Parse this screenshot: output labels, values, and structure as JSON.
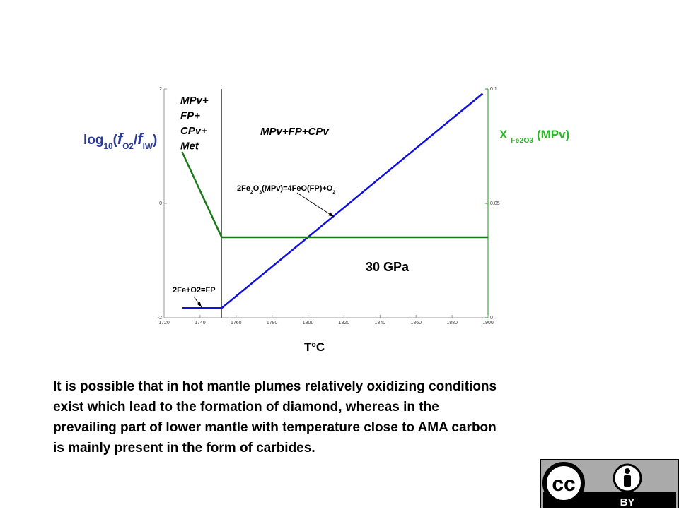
{
  "chart_data": {
    "type": "line",
    "x_label_parts": [
      "T",
      "o",
      "C"
    ],
    "y_label_parts": [
      "log",
      "10",
      "(",
      "f",
      "O2",
      "/",
      "f",
      "IW",
      ")"
    ],
    "y2_label_parts": [
      "X ",
      "Fe2O3",
      " (MPv)"
    ],
    "xlim": [
      1720,
      1900
    ],
    "xticks": [
      1720,
      1740,
      1760,
      1780,
      1800,
      1820,
      1840,
      1860,
      1880,
      1900
    ],
    "ylim": [
      -2,
      2
    ],
    "yticks": [
      -2,
      0,
      2
    ],
    "y2lim": [
      0,
      0.1
    ],
    "y2ticks": [
      0,
      0.05,
      0.1
    ],
    "boundary_x": 1752,
    "series": [
      {
        "color": "#1010e0",
        "x": [
          1730,
          1752,
          1897
        ],
        "values": [
          -1.83,
          -1.83,
          1.92
        ]
      },
      {
        "color": "#1a7a1a",
        "axis": "y2",
        "x": [
          1730,
          1752,
          1900
        ],
        "values": [
          0.0725,
          0.0352,
          0.0352
        ]
      }
    ],
    "phase_left": [
      "MPv+",
      "FP+",
      "CPv+",
      "Met"
    ],
    "phase_right": "MPv+FP+CPv",
    "pressure": "30 GPa",
    "reaction_low": "2Fe+O2=FP",
    "reaction_high_parts": [
      "2Fe",
      "2",
      "O",
      "3",
      "(MPv)=4FeO(FP)+O",
      "2"
    ]
  },
  "caption": [
    "It is possible that in hot mantle plumes relatively oxidizing conditions",
    "exist which lead to the formation of diamond, whereas in the",
    "prevailing part of lower mantle with temperature close to AMA carbon",
    "is mainly present in the form of carbides."
  ],
  "badge": [
    "cc",
    "BY"
  ]
}
